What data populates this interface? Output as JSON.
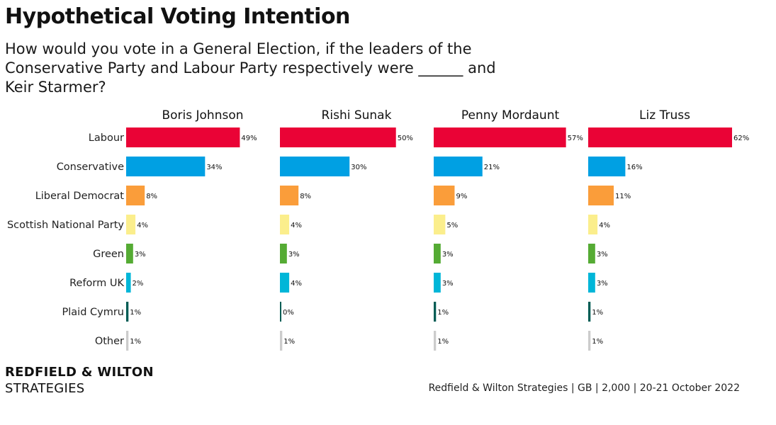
{
  "title": "Hypothetical Voting Intention",
  "subtitle": "How would you vote in a General Election, if the leaders of the Conservative Party and Labour Party respectively were ______ and Keir Starmer?",
  "brand": {
    "line1": "REDFIELD & WILTON",
    "line2": "STRATEGIES"
  },
  "source": "Redfield & Wilton Strategies | GB | 2,000 | 20-21 October 2022",
  "chart_data": {
    "type": "bar",
    "orientation": "horizontal",
    "categories": [
      "Labour",
      "Conservative",
      "Liberal Democrat",
      "Scottish National Party",
      "Green",
      "Reform UK",
      "Plaid Cymru",
      "Other"
    ],
    "colors": [
      "#ea0336",
      "#00a0e3",
      "#fa9d3a",
      "#fbee8c",
      "#55ab34",
      "#00b6d8",
      "#005c54",
      "#cccccc"
    ],
    "value_format": "percent",
    "xlim": [
      0,
      62
    ],
    "grid": false,
    "panels": [
      {
        "name": "Boris Johnson",
        "values": [
          49,
          34,
          8,
          4,
          3,
          2,
          1,
          1
        ]
      },
      {
        "name": "Rishi Sunak",
        "values": [
          50,
          30,
          8,
          4,
          3,
          4,
          0,
          1
        ]
      },
      {
        "name": "Penny Mordaunt",
        "values": [
          57,
          21,
          9,
          5,
          3,
          3,
          1,
          1
        ]
      },
      {
        "name": "Liz Truss",
        "values": [
          62,
          16,
          11,
          4,
          3,
          3,
          1,
          1
        ]
      }
    ]
  }
}
